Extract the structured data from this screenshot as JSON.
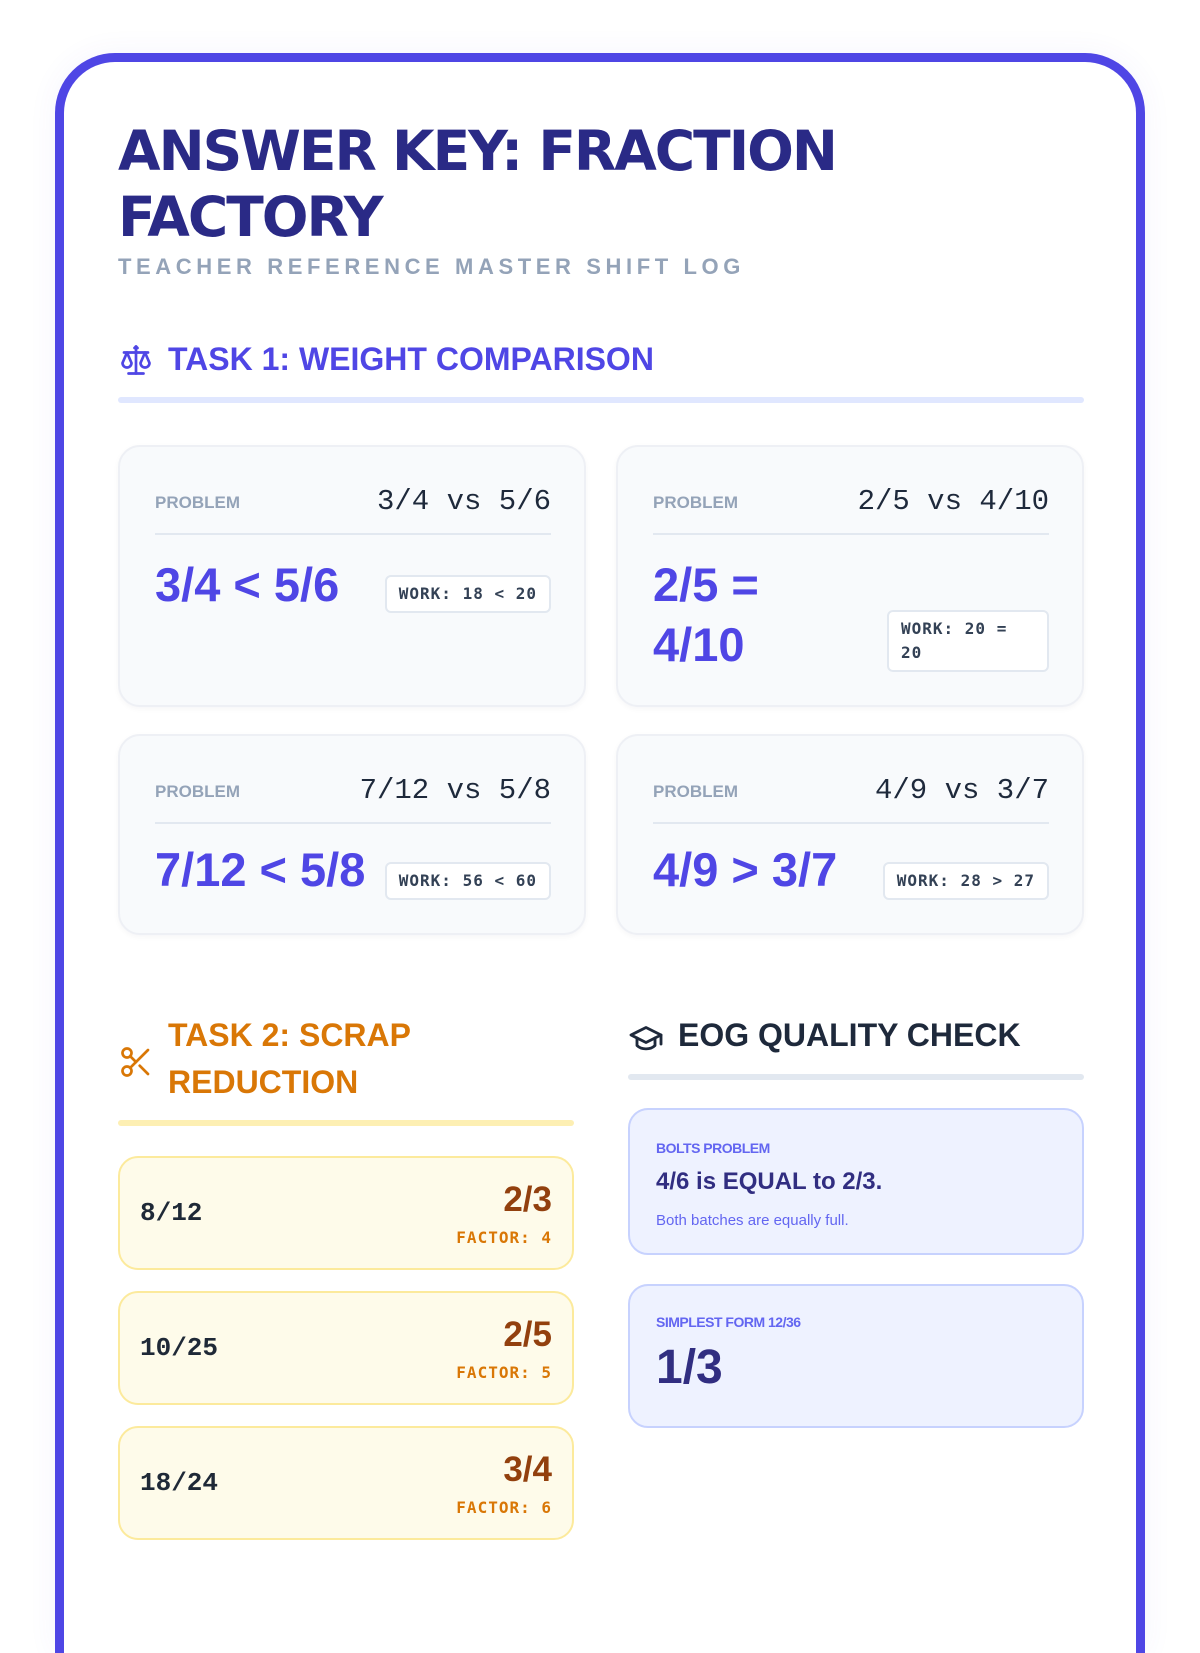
{
  "header": {
    "title": "ANSWER KEY: FRACTION FACTORY",
    "subtitle": "TEACHER REFERENCE MASTER SHIFT LOG"
  },
  "task1": {
    "heading": "TASK 1: WEIGHT COMPARISON",
    "icon": "scale-icon",
    "cards": [
      {
        "problem_label": "PROBLEM",
        "problem": "3/4 vs 5/6",
        "answer": "3/4 < 5/6",
        "work": "WORK: 18 < 20"
      },
      {
        "problem_label": "PROBLEM",
        "problem": "2/5 vs 4/10",
        "answer": "2/5 = 4/10",
        "work": "WORK: 20 = 20"
      },
      {
        "problem_label": "PROBLEM",
        "problem": "7/12 vs 5/8",
        "answer": "7/12 < 5/8",
        "work": "WORK: 56 < 60"
      },
      {
        "problem_label": "PROBLEM",
        "problem": "4/9 vs 3/7",
        "answer": "4/9 > 3/7",
        "work": "WORK: 28 > 27"
      }
    ]
  },
  "task2": {
    "heading": "TASK 2: SCRAP REDUCTION",
    "icon": "scissors-icon",
    "items": [
      {
        "original": "8/12",
        "simplified": "2/3",
        "factor": "FACTOR: 4"
      },
      {
        "original": "10/25",
        "simplified": "2/5",
        "factor": "FACTOR: 5"
      },
      {
        "original": "18/24",
        "simplified": "3/4",
        "factor": "FACTOR: 6"
      }
    ]
  },
  "eog": {
    "heading": "EOG QUALITY CHECK",
    "icon": "graduation-cap-icon",
    "bolts": {
      "label": "BOLTS PROBLEM",
      "answer": "4/6 is EQUAL to 2/3.",
      "note": "Both batches are equally full."
    },
    "simplest": {
      "label": "SIMPLEST FORM 12/36",
      "answer": "1/3"
    }
  },
  "colors": {
    "primary": "#4f46e5",
    "title": "#2a2a86",
    "amber": "#d97706",
    "amber_dark": "#92400e",
    "slate": "#1e293b"
  }
}
